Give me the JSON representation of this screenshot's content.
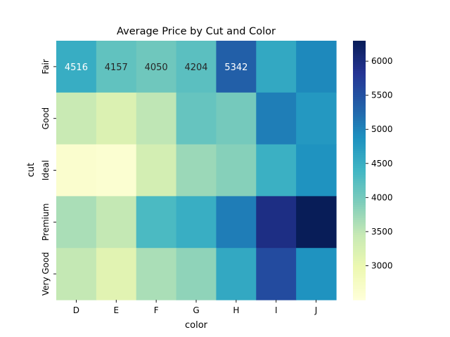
{
  "chart_data": {
    "type": "heatmap",
    "title": "Average Price by Cut and Color",
    "xlabel": "color",
    "ylabel": "cut",
    "x_categories": [
      "D",
      "E",
      "F",
      "G",
      "H",
      "I",
      "J"
    ],
    "y_categories": [
      "Fair",
      "Good",
      "Ideal",
      "Premium",
      "Very Good"
    ],
    "values": [
      [
        4516,
        4157,
        4050,
        4204,
        5342,
        4580,
        4950
      ],
      [
        3420,
        3200,
        3500,
        4120,
        4000,
        5050,
        4780
      ],
      [
        2630,
        2600,
        3300,
        3740,
        3880,
        4480,
        4850
      ],
      [
        3640,
        3470,
        4320,
        4500,
        5060,
        5950,
        6300
      ],
      [
        3470,
        3120,
        3640,
        3820,
        4580,
        5560,
        4850
      ]
    ],
    "annotated_cells": [
      {
        "row": 0,
        "col": 0,
        "label": "4516"
      },
      {
        "row": 0,
        "col": 1,
        "label": "4157"
      },
      {
        "row": 0,
        "col": 2,
        "label": "4050"
      },
      {
        "row": 0,
        "col": 3,
        "label": "4204"
      },
      {
        "row": 0,
        "col": 4,
        "label": "5342"
      }
    ],
    "colormap": "YlGnBu",
    "vmin": 2500,
    "vmax": 6300,
    "colorbar_ticks": [
      "3000",
      "3500",
      "4000",
      "4500",
      "5000",
      "5500",
      "6000"
    ]
  }
}
